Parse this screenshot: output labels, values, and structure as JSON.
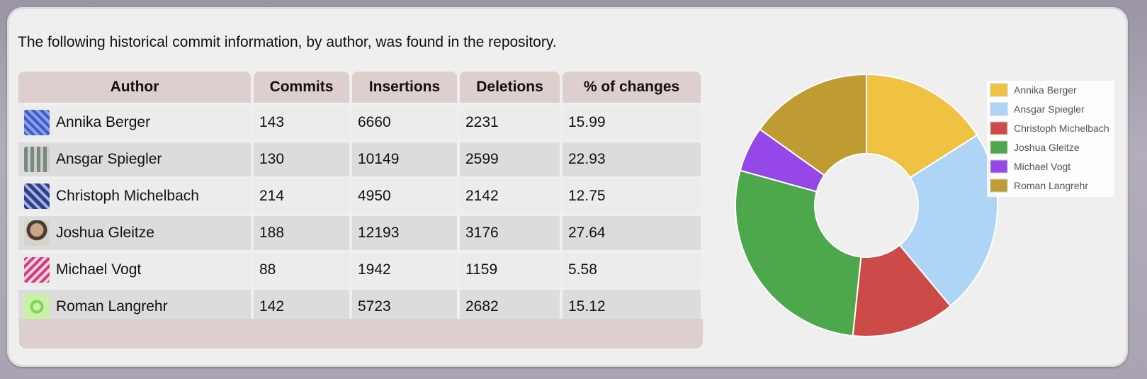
{
  "intro_text": "The following historical commit information, by author, was found in the repository.",
  "table": {
    "headers": {
      "author": "Author",
      "commits": "Commits",
      "insertions": "Insertions",
      "deletions": "Deletions",
      "percent": "% of changes"
    },
    "rows": [
      {
        "author": "Annika Berger",
        "commits": "143",
        "insertions": "6660",
        "deletions": "2231",
        "percent": "15.99"
      },
      {
        "author": "Ansgar Spiegler",
        "commits": "130",
        "insertions": "10149",
        "deletions": "2599",
        "percent": "22.93"
      },
      {
        "author": "Christoph Michelbach",
        "commits": "214",
        "insertions": "4950",
        "deletions": "2142",
        "percent": "12.75"
      },
      {
        "author": "Joshua Gleitze",
        "commits": "188",
        "insertions": "12193",
        "deletions": "3176",
        "percent": "27.64"
      },
      {
        "author": "Michael Vogt",
        "commits": "88",
        "insertions": "1942",
        "deletions": "1159",
        "percent": "5.58"
      },
      {
        "author": "Roman Langrehr",
        "commits": "142",
        "insertions": "5723",
        "deletions": "2682",
        "percent": "15.12"
      }
    ]
  },
  "chart_data": {
    "type": "pie",
    "style": "doughnut",
    "legend_position": "top-right",
    "categories": [
      "Annika Berger",
      "Ansgar Spiegler",
      "Christoph Michelbach",
      "Joshua Gleitze",
      "Michael Vogt",
      "Roman Langrehr"
    ],
    "values": [
      15.99,
      22.93,
      12.75,
      27.64,
      5.58,
      15.12
    ],
    "colors": [
      "#efc242",
      "#afd5f6",
      "#cc4b48",
      "#4ca84b",
      "#9547e8",
      "#bf9c32"
    ]
  }
}
